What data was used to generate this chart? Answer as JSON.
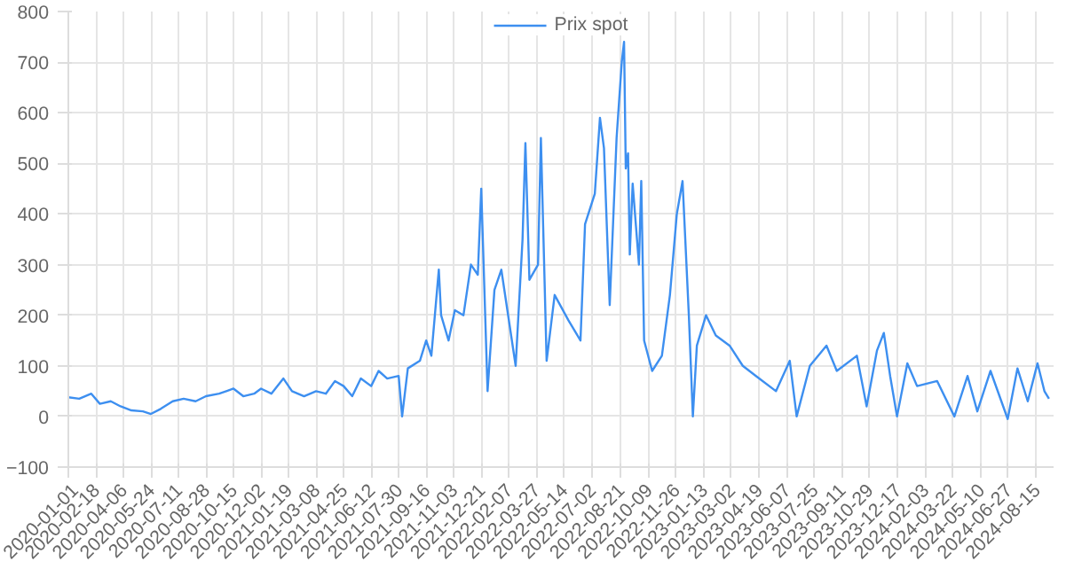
{
  "chart_data": {
    "type": "line",
    "legend": "top",
    "grid": true,
    "marker": "none",
    "line_style": "solid",
    "xlim": [
      "2020-01-01",
      "2024-09-14"
    ],
    "ylim": [
      -100,
      800
    ],
    "yticks": [
      -100,
      0,
      100,
      200,
      300,
      400,
      500,
      600,
      700,
      800
    ],
    "xticks": [
      "2020-01-01",
      "2020-02-18",
      "2020-04-06",
      "2020-05-24",
      "2020-07-11",
      "2020-08-28",
      "2020-10-15",
      "2020-12-02",
      "2021-01-19",
      "2021-03-08",
      "2021-04-25",
      "2021-06-12",
      "2021-07-30",
      "2021-09-16",
      "2021-11-03",
      "2021-12-21",
      "2022-02-07",
      "2022-03-27",
      "2022-05-14",
      "2022-07-02",
      "2022-08-21",
      "2022-10-09",
      "2022-11-26",
      "2023-01-13",
      "2023-03-02",
      "2023-04-19",
      "2023-06-07",
      "2023-07-25",
      "2023-09-11",
      "2023-10-29",
      "2023-12-17",
      "2024-02-03",
      "2024-03-22",
      "2024-05-10",
      "2024-06-27",
      "2024-08-15"
    ],
    "series": [
      {
        "name": "Prix spot",
        "color": "#3d8ff0",
        "x": [
          "2020-01-01",
          "2020-01-20",
          "2020-02-10",
          "2020-02-25",
          "2020-03-15",
          "2020-04-01",
          "2020-04-20",
          "2020-05-10",
          "2020-05-24",
          "2020-06-10",
          "2020-07-01",
          "2020-07-20",
          "2020-08-10",
          "2020-08-28",
          "2020-09-20",
          "2020-10-15",
          "2020-11-01",
          "2020-11-20",
          "2020-12-02",
          "2020-12-20",
          "2021-01-10",
          "2021-01-25",
          "2021-02-15",
          "2021-03-08",
          "2021-03-25",
          "2021-04-10",
          "2021-04-25",
          "2021-05-10",
          "2021-05-25",
          "2021-06-12",
          "2021-06-25",
          "2021-07-10",
          "2021-07-30",
          "2021-08-05",
          "2021-08-15",
          "2021-09-05",
          "2021-09-16",
          "2021-09-25",
          "2021-10-08",
          "2021-10-12",
          "2021-10-25",
          "2021-11-05",
          "2021-11-20",
          "2021-12-03",
          "2021-12-15",
          "2021-12-21",
          "2022-01-01",
          "2022-01-13",
          "2022-01-25",
          "2022-02-19",
          "2022-03-03",
          "2022-03-08",
          "2022-03-15",
          "2022-03-30",
          "2022-04-04",
          "2022-04-14",
          "2022-04-28",
          "2022-05-22",
          "2022-06-12",
          "2022-06-20",
          "2022-07-07",
          "2022-07-16",
          "2022-07-23",
          "2022-08-02",
          "2022-08-14",
          "2022-08-23",
          "2022-08-27",
          "2022-08-30",
          "2022-09-03",
          "2022-09-06",
          "2022-09-11",
          "2022-09-22",
          "2022-09-26",
          "2022-10-01",
          "2022-10-15",
          "2022-11-01",
          "2022-11-15",
          "2022-11-27",
          "2022-12-07",
          "2022-12-18",
          "2022-12-25",
          "2023-01-01",
          "2023-01-17",
          "2023-02-03",
          "2023-02-27",
          "2023-03-22",
          "2023-04-14",
          "2023-05-19",
          "2023-06-12",
          "2023-06-24",
          "2023-07-17",
          "2023-08-15",
          "2023-09-02",
          "2023-10-07",
          "2023-10-24",
          "2023-11-11",
          "2023-11-23",
          "2023-12-04",
          "2023-12-16",
          "2024-01-03",
          "2024-01-20",
          "2024-02-24",
          "2024-03-25",
          "2024-04-17",
          "2024-05-04",
          "2024-05-27",
          "2024-06-26",
          "2024-07-13",
          "2024-07-31",
          "2024-08-17",
          "2024-08-29",
          "2024-09-06"
        ],
        "values": [
          38,
          35,
          45,
          25,
          30,
          20,
          12,
          10,
          5,
          15,
          30,
          35,
          30,
          40,
          45,
          55,
          40,
          45,
          55,
          45,
          75,
          50,
          40,
          50,
          45,
          70,
          60,
          40,
          75,
          60,
          90,
          75,
          80,
          0,
          95,
          110,
          150,
          120,
          290,
          200,
          150,
          210,
          200,
          300,
          280,
          450,
          50,
          250,
          290,
          100,
          350,
          540,
          270,
          300,
          550,
          110,
          240,
          190,
          150,
          380,
          440,
          590,
          530,
          220,
          550,
          700,
          740,
          490,
          520,
          320,
          460,
          300,
          465,
          150,
          90,
          120,
          240,
          400,
          465,
          200,
          0,
          140,
          200,
          160,
          140,
          100,
          80,
          50,
          110,
          0,
          100,
          140,
          90,
          120,
          20,
          130,
          165,
          80,
          0,
          105,
          60,
          70,
          0,
          80,
          10,
          90,
          -5,
          95,
          30,
          105,
          50,
          35
        ]
      }
    ]
  }
}
